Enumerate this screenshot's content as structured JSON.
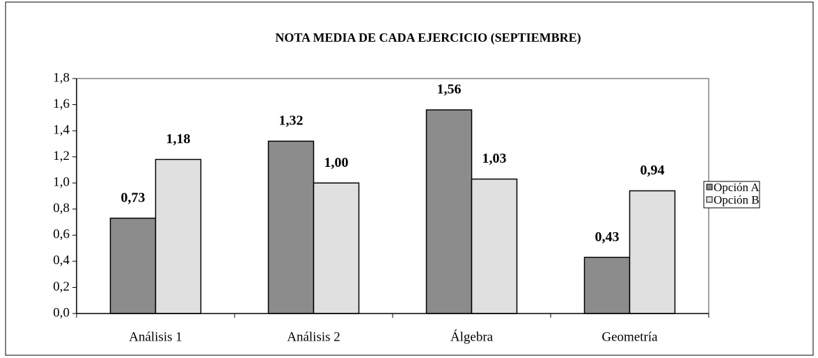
{
  "chart_data": {
    "type": "bar",
    "title": "NOTA MEDIA DE CADA EJERCICIO (SEPTIEMBRE)",
    "categories": [
      "Análisis 1",
      "Análisis 2",
      "Álgebra",
      "Geometría"
    ],
    "series": [
      {
        "name": "Opción A",
        "color": "#8c8c8c",
        "values": [
          0.73,
          1.32,
          1.56,
          0.43
        ],
        "value_labels": [
          "0,73",
          "1,32",
          "1,56",
          "0,43"
        ]
      },
      {
        "name": "Opción B",
        "color": "#e0e0e0",
        "values": [
          1.18,
          1.0,
          1.03,
          0.94
        ],
        "value_labels": [
          "1,18",
          "1,00",
          "1,03",
          "0,94"
        ]
      }
    ],
    "ylim": [
      0,
      1.8
    ],
    "yticks": [
      {
        "value": 0,
        "label": "0,0"
      },
      {
        "value": 0.2,
        "label": "0,2"
      },
      {
        "value": 0.4,
        "label": "0,4"
      },
      {
        "value": 0.6,
        "label": "0,6"
      },
      {
        "value": 0.8,
        "label": "0,8"
      },
      {
        "value": 1.0,
        "label": "1,0"
      },
      {
        "value": 1.2,
        "label": "1,2"
      },
      {
        "value": 1.4,
        "label": "1,4"
      },
      {
        "value": 1.6,
        "label": "1,6"
      },
      {
        "value": 1.8,
        "label": "1,8"
      }
    ],
    "legend": "right"
  }
}
